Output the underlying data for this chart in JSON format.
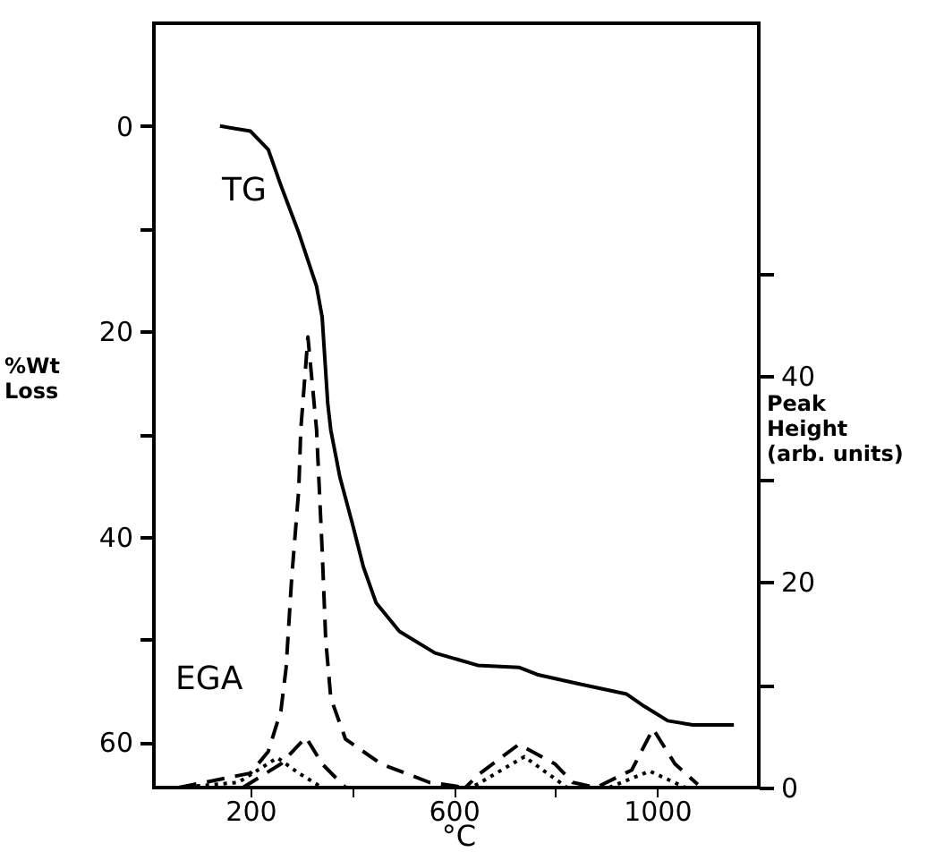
{
  "chart_data": {
    "type": "line",
    "xlabel": "°C",
    "ylabel": "%Wt\nLoss",
    "y2label": "Peak\nHeight\n(arb. units)",
    "xlim": [
      10,
      1200
    ],
    "xticks": [
      200,
      {
        "value": 400,
        "label": null
      },
      600,
      {
        "value": 800,
        "label": null
      },
      1000
    ],
    "ylim": [
      64.4,
      -10
    ],
    "yticks": [
      0,
      {
        "value": 10,
        "label": null
      },
      20,
      {
        "value": 30,
        "label": null
      },
      40,
      {
        "value": 50,
        "label": null
      },
      60
    ],
    "y2lim": [
      0,
      74.3
    ],
    "y2ticks": [
      0,
      {
        "value": 10,
        "label": null
      },
      20,
      {
        "value": 30,
        "label": null
      },
      40,
      {
        "value": 50,
        "label": null
      }
    ],
    "grid": false,
    "annotations": [
      "TG",
      "EGA"
    ],
    "series": [
      {
        "color": "#000000",
        "line_style": "solid",
        "x": [
          140,
          200,
          235,
          260,
          295,
          330,
          341,
          352,
          358,
          376,
          401,
          422,
          447,
          493,
          563,
          647,
          728,
          764,
          845,
          940,
          975,
          1021,
          1070,
          1151
        ],
        "values": [
          0,
          0.5,
          2.3,
          5.8,
          10.4,
          15.6,
          18.6,
          27,
          29.6,
          34.2,
          38.8,
          42.9,
          46.4,
          49.2,
          51.3,
          52.5,
          52.7,
          53.4,
          54.3,
          55.3,
          56.5,
          57.9,
          58.3,
          58.3
        ]
      },
      {
        "color": "#000000",
        "line_style": "dashed",
        "axis": "y2",
        "x": [
          59,
          200,
          235,
          260,
          270,
          281,
          295,
          299,
          313,
          330,
          341,
          348,
          358,
          387,
          457,
          552,
          623
        ],
        "values": [
          0,
          1.4,
          3.5,
          7.5,
          11.6,
          20.3,
          29,
          34.8,
          43.8,
          34.8,
          23.1,
          14.4,
          8.7,
          4.7,
          2.3,
          0.5,
          0
        ]
      },
      {
        "color": "#000000",
        "line_style": "dashed",
        "axis": "y2",
        "x": [
          185,
          260,
          309,
          341,
          387,
          623,
          647,
          728,
          799,
          834,
          880,
          950,
          992,
          1035,
          1080
        ],
        "values": [
          0,
          2.3,
          4.9,
          2.3,
          0,
          0,
          1.2,
          4.2,
          2.3,
          0.5,
          0,
          1.7,
          5.7,
          2.3,
          0.3
        ]
      },
      {
        "color": "#000000",
        "line_style": "dotted",
        "axis": "y2",
        "x": [
          59,
          176,
          253,
          295,
          341,
          635,
          739,
          823,
          905,
          985,
          1056
        ],
        "values": [
          0,
          0.5,
          2.9,
          1.4,
          0,
          0,
          3.0,
          0,
          0,
          1.6,
          0
        ]
      }
    ]
  }
}
